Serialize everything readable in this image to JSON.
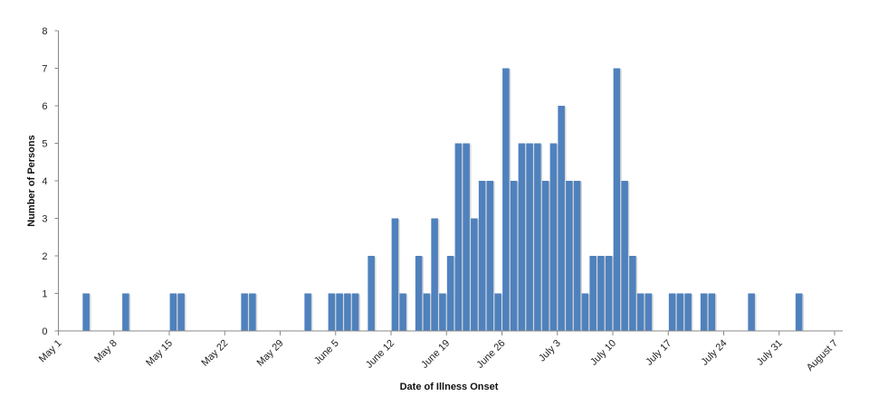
{
  "chart_data": {
    "type": "bar",
    "title": "",
    "xlabel": "Date of Illness Onset",
    "ylabel": "Number of Persons",
    "ylim": [
      0,
      8
    ],
    "yticks": [
      "0",
      "1",
      "2",
      "3",
      "4",
      "5",
      "6",
      "7",
      "8"
    ],
    "xlim": [
      "May 1",
      "August 7"
    ],
    "xticks": [
      "May 1",
      "May 8",
      "May 15",
      "May 22",
      "May 29",
      "June 5",
      "June 12",
      "June 19",
      "June 26",
      "July 3",
      "July 10",
      "July 17",
      "July 24",
      "July 31",
      "August 7"
    ],
    "grid": false,
    "bar_color": "#4f81bd",
    "data": [
      {
        "date": "May 4",
        "value": 1
      },
      {
        "date": "May 9",
        "value": 1
      },
      {
        "date": "May 15",
        "value": 1
      },
      {
        "date": "May 16",
        "value": 1
      },
      {
        "date": "May 24",
        "value": 1
      },
      {
        "date": "May 25",
        "value": 1
      },
      {
        "date": "June 1",
        "value": 1
      },
      {
        "date": "June 4",
        "value": 1
      },
      {
        "date": "June 5",
        "value": 1
      },
      {
        "date": "June 6",
        "value": 1
      },
      {
        "date": "June 7",
        "value": 1
      },
      {
        "date": "June 9",
        "value": 2
      },
      {
        "date": "June 12",
        "value": 3
      },
      {
        "date": "June 13",
        "value": 1
      },
      {
        "date": "June 15",
        "value": 2
      },
      {
        "date": "June 16",
        "value": 1
      },
      {
        "date": "June 17",
        "value": 3
      },
      {
        "date": "June 18",
        "value": 1
      },
      {
        "date": "June 19",
        "value": 2
      },
      {
        "date": "June 20",
        "value": 5
      },
      {
        "date": "June 21",
        "value": 5
      },
      {
        "date": "June 22",
        "value": 3
      },
      {
        "date": "June 23",
        "value": 4
      },
      {
        "date": "June 24",
        "value": 4
      },
      {
        "date": "June 25",
        "value": 1
      },
      {
        "date": "June 26",
        "value": 7
      },
      {
        "date": "June 27",
        "value": 4
      },
      {
        "date": "June 28",
        "value": 5
      },
      {
        "date": "June 29",
        "value": 5
      },
      {
        "date": "June 30",
        "value": 5
      },
      {
        "date": "July 1",
        "value": 4
      },
      {
        "date": "July 2",
        "value": 5
      },
      {
        "date": "July 3",
        "value": 6
      },
      {
        "date": "July 4",
        "value": 4
      },
      {
        "date": "July 5",
        "value": 4
      },
      {
        "date": "July 6",
        "value": 1
      },
      {
        "date": "July 7",
        "value": 2
      },
      {
        "date": "July 8",
        "value": 2
      },
      {
        "date": "July 9",
        "value": 2
      },
      {
        "date": "July 10",
        "value": 7
      },
      {
        "date": "July 11",
        "value": 4
      },
      {
        "date": "July 12",
        "value": 2
      },
      {
        "date": "July 13",
        "value": 1
      },
      {
        "date": "July 14",
        "value": 1
      },
      {
        "date": "July 17",
        "value": 1
      },
      {
        "date": "July 18",
        "value": 1
      },
      {
        "date": "July 19",
        "value": 1
      },
      {
        "date": "July 21",
        "value": 1
      },
      {
        "date": "July 22",
        "value": 1
      },
      {
        "date": "July 27",
        "value": 1
      },
      {
        "date": "August 2",
        "value": 1
      }
    ]
  }
}
